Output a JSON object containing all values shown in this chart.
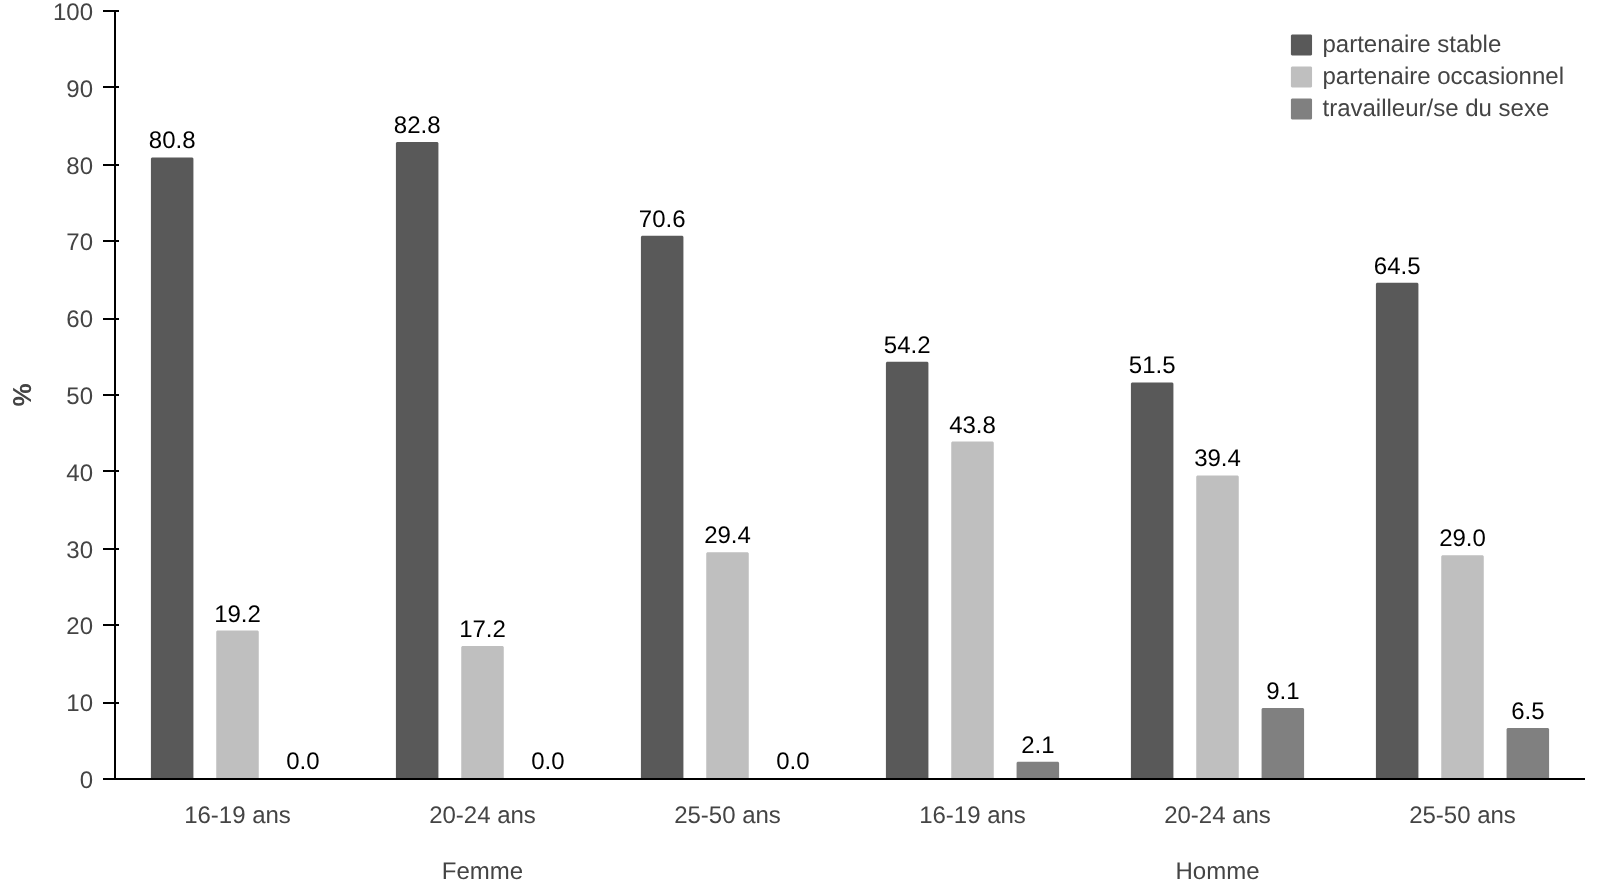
{
  "chart_data": {
    "type": "bar",
    "ylabel": "%",
    "categories": [
      "16-19 ans",
      "20-24 ans",
      "25-50 ans",
      "16-19 ans",
      "20-24 ans",
      "25-50 ans"
    ],
    "annotations": [
      "Femme",
      "Homme"
    ],
    "series": [
      {
        "name": "partenaire stable",
        "color": "#595959",
        "values": [
          80.8,
          82.8,
          70.6,
          54.2,
          51.5,
          64.5
        ],
        "value_labels": [
          "80.8",
          "82.8",
          "70.6",
          "54.2",
          "51.5",
          "64.5"
        ]
      },
      {
        "name": "partenaire occasionnel",
        "color": "#bfbfbf",
        "values": [
          19.2,
          17.2,
          29.4,
          43.8,
          39.4,
          29.0
        ],
        "value_labels": [
          "19.2",
          "17.2",
          "29.4",
          "43.8",
          "39.4",
          "29.0"
        ]
      },
      {
        "name": "travailleur/se du sexe",
        "color": "#808080",
        "values": [
          0.0,
          0.0,
          0.0,
          2.1,
          9.1,
          6.5
        ],
        "value_labels": [
          "0.0",
          "0.0",
          "0.0",
          "2.1",
          "9.1",
          "6.5"
        ]
      }
    ],
    "ylim": [
      0,
      100
    ],
    "yticks": [
      0,
      10,
      20,
      30,
      40,
      50,
      60,
      70,
      80,
      90,
      100
    ],
    "legend": "top right",
    "grid": false
  }
}
